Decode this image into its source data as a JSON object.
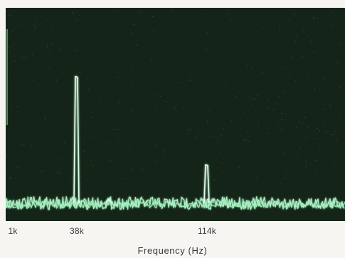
{
  "chart_data": {
    "type": "line",
    "title": "",
    "xlabel": "Frequency (Hz)",
    "ylabel": "",
    "grid": false,
    "legend": "none",
    "x_scale": "log",
    "xlim_hz": [
      1000,
      200000
    ],
    "xticks": [
      {
        "value": 1000,
        "label": "1k"
      },
      {
        "value": 38000,
        "label": "38k"
      },
      {
        "value": 114000,
        "label": "114k"
      }
    ],
    "peaks": [
      {
        "frequency_hz": 38000,
        "relative_level": 0.72
      },
      {
        "frequency_hz": 57000,
        "relative_level": 0.08
      },
      {
        "frequency_hz": 114000,
        "relative_level": 0.26
      }
    ],
    "noise_floor_relative": 0.06,
    "colors": {
      "screen_background": "#152418",
      "trace": "#a6f0c0",
      "trace_glow": "#d9ffe6"
    }
  }
}
